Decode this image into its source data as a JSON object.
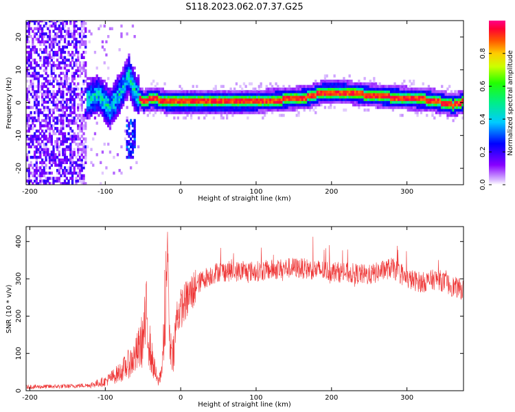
{
  "title": "S118.2023.062.07.37.G25",
  "colors": {
    "snr_line": "#ee3333",
    "ridge": "#ff2200",
    "background": "#ffffff"
  },
  "chart_data": [
    {
      "type": "heatmap",
      "xlabel": "Height of straight line (km)",
      "ylabel": "Frequency (Hz)",
      "xlim": [
        -205,
        375
      ],
      "ylim": [
        -25,
        25
      ],
      "xticks": [
        -200,
        -100,
        0,
        100,
        200,
        300
      ],
      "yticks": [
        -20,
        -10,
        0,
        10,
        20
      ],
      "grid": false,
      "colorbar": {
        "label": "Normalized spectral amplitude",
        "range": [
          0.0,
          1.0
        ],
        "ticks": [
          0.0,
          0.2,
          0.4,
          0.6,
          0.8
        ],
        "colormap": "rainbow (white-purple-blue-cyan-green-yellow-orange-red-magenta)"
      },
      "ridge": {
        "x": [
          -130,
          -110,
          -95,
          -80,
          -70,
          -60,
          -50,
          -40,
          -30,
          -20,
          0,
          50,
          100,
          130,
          150,
          170,
          190,
          210,
          230,
          250,
          270,
          300,
          330,
          360,
          375
        ],
        "y": [
          0,
          2,
          -2,
          3,
          8,
          2,
          0,
          1,
          0.5,
          0,
          0,
          0,
          0,
          0.5,
          1,
          1.5,
          3,
          3,
          2.5,
          2,
          1.5,
          1,
          0.5,
          -1,
          0
        ]
      }
    },
    {
      "type": "line",
      "xlabel": "Height of straight line (km)",
      "ylabel": "SNR (10 * v/v)",
      "xlim": [
        -205,
        375
      ],
      "ylim": [
        0,
        440
      ],
      "xticks": [
        -200,
        -100,
        0,
        100,
        200,
        300
      ],
      "yticks": [
        0,
        100,
        200,
        300,
        400
      ],
      "grid": false,
      "series": [
        {
          "x": [
            -205,
            -150,
            -120,
            -100,
            -80,
            -60,
            -50,
            -45,
            -40,
            -35,
            -30,
            -25,
            -20,
            -17,
            -15,
            -10,
            -5,
            0,
            10,
            20,
            30,
            50,
            100,
            150,
            200,
            250,
            280,
            300,
            320,
            340,
            360,
            375
          ],
          "values": [
            10,
            12,
            15,
            25,
            50,
            90,
            140,
            200,
            100,
            60,
            20,
            60,
            200,
            410,
            130,
            100,
            200,
            220,
            250,
            280,
            300,
            320,
            320,
            330,
            320,
            310,
            330,
            300,
            290,
            300,
            280,
            270
          ]
        }
      ]
    }
  ]
}
